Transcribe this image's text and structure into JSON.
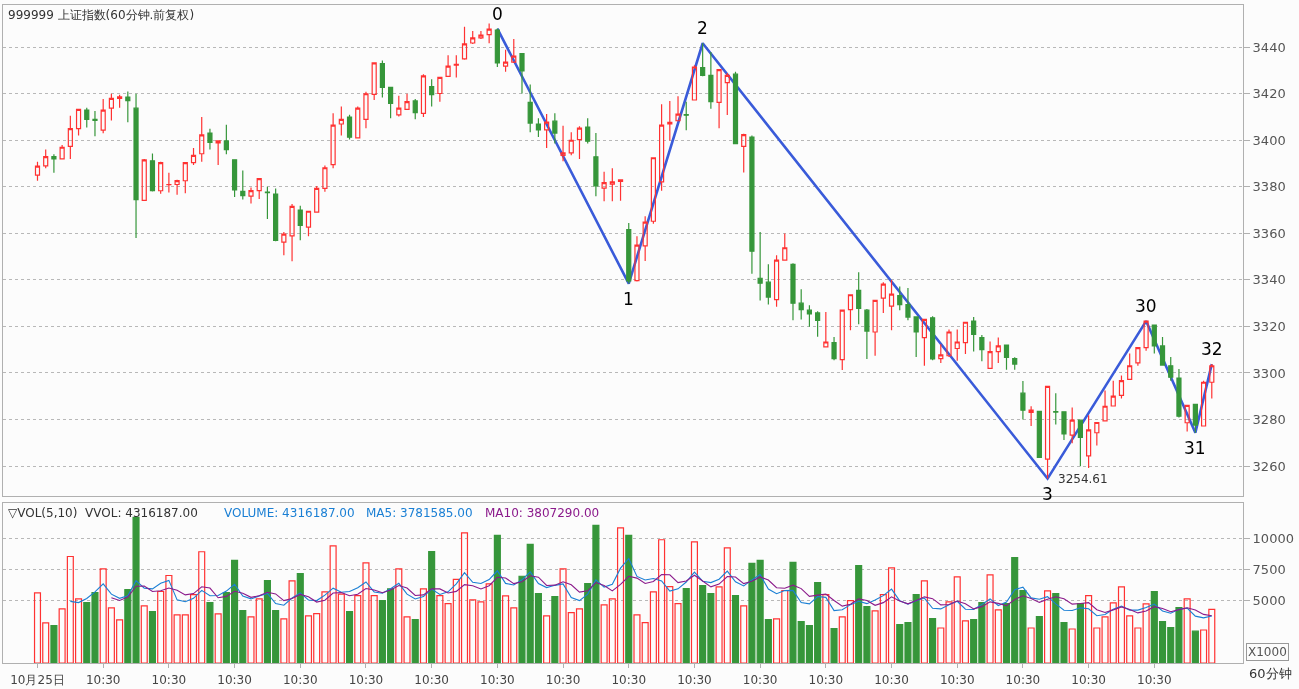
{
  "chart_data": [
    {
      "type": "candlestick",
      "title": "999999 上证指数(60分钟.前复权)",
      "ohlc": [
        [
          3385,
          3390.8,
          3382.6,
          3388.9
        ],
        [
          3389,
          3396,
          3388,
          3393
        ],
        [
          3393,
          3394,
          3386,
          3392
        ],
        [
          3392,
          3398,
          3392,
          3397
        ],
        [
          3397.4,
          3410.5,
          3392,
          3405
        ],
        [
          3405,
          3413.5,
          3402,
          3413.3
        ],
        [
          3413,
          3414,
          3405.5,
          3409
        ],
        [
          3409,
          3412.6,
          3401.7,
          3408.5
        ],
        [
          3404.4,
          3417.7,
          3403,
          3413
        ],
        [
          3413.8,
          3420,
          3408.5,
          3418
        ],
        [
          3418,
          3419.6,
          3414,
          3418.7
        ],
        [
          3418.6,
          3421,
          3407.7,
          3417
        ],
        [
          3413.8,
          3420,
          3358,
          3374.5
        ],
        [
          3374.2,
          3392,
          3374,
          3391.6
        ],
        [
          3391.2,
          3394.3,
          3378,
          3378.3
        ],
        [
          3378.3,
          3390.8,
          3377,
          3390.4
        ],
        [
          3380.9,
          3386,
          3377.6,
          3381
        ],
        [
          3381,
          3383,
          3376.6,
          3382.7
        ],
        [
          3382.6,
          3390.5,
          3377.2,
          3390.4
        ],
        [
          3390.4,
          3396.7,
          3389.4,
          3393.5
        ],
        [
          3394.2,
          3410,
          3390.8,
          3402.3
        ],
        [
          3403.1,
          3405,
          3396,
          3399.1
        ],
        [
          3398.9,
          3400,
          3389.4,
          3399.7
        ],
        [
          3399.7,
          3406.7,
          3394,
          3396
        ],
        [
          3391.6,
          3391.6,
          3375.6,
          3378.7
        ],
        [
          3378,
          3387,
          3374.5,
          3376.2
        ],
        [
          3376,
          3379.7,
          3372.8,
          3378.4
        ],
        [
          3378.4,
          3383.5,
          3374.8,
          3383.5
        ],
        [
          3377.7,
          3380,
          3366.2,
          3377.5
        ],
        [
          3376.9,
          3379.3,
          3356.6,
          3357
        ],
        [
          3356.2,
          3360.6,
          3350.6,
          3359.7
        ],
        [
          3358.9,
          3372.6,
          3348,
          3371.6
        ],
        [
          3370,
          3371.9,
          3357,
          3363.4
        ],
        [
          3362.7,
          3369.5,
          3358.7,
          3369.5
        ],
        [
          3369.1,
          3380.4,
          3369,
          3379.3
        ],
        [
          3379.3,
          3389.2,
          3377.9,
          3388.2
        ],
        [
          3389.5,
          3411.6,
          3388,
          3406.5
        ],
        [
          3407,
          3414.5,
          3402,
          3409
        ],
        [
          3410,
          3411,
          3400.3,
          3401.3
        ],
        [
          3401,
          3414.5,
          3401,
          3413.8
        ],
        [
          3409,
          3420.9,
          3405.2,
          3420
        ],
        [
          3419.7,
          3433.3,
          3417.3,
          3433.3
        ],
        [
          3432.9,
          3434.3,
          3418.4,
          3422.7
        ],
        [
          3422.7,
          3422.7,
          3409.5,
          3415.9
        ],
        [
          3410.9,
          3419.1,
          3410.2,
          3413.8
        ],
        [
          3413.3,
          3420,
          3413.3,
          3416.6
        ],
        [
          3416.9,
          3417.7,
          3409,
          3411.9
        ],
        [
          3411.6,
          3428.4,
          3410,
          3427.7
        ],
        [
          3423.1,
          3426.2,
          3414.5,
          3419.6
        ],
        [
          3420.1,
          3427,
          3416.6,
          3427
        ],
        [
          3427.5,
          3436.5,
          3427.5,
          3431.9
        ],
        [
          3432.3,
          3436.5,
          3427,
          3432.6
        ],
        [
          3435,
          3448.8,
          3434.6,
          3441.4
        ],
        [
          3441.8,
          3447,
          3441.4,
          3444
        ],
        [
          3444,
          3447,
          3443.5,
          3445.2
        ],
        [
          3445.4,
          3450.2,
          3441.7,
          3447.8
        ],
        [
          3447.4,
          3448,
          3431.5,
          3433.2
        ],
        [
          3431.9,
          3438.9,
          3429.4,
          3433.6
        ],
        [
          3433.6,
          3443.5,
          3433.2,
          3436.2
        ],
        [
          3437.2,
          3437.2,
          3420.1,
          3429.8
        ],
        [
          3416.3,
          3424,
          3403.4,
          3407.4
        ],
        [
          3407,
          3409.5,
          3401.4,
          3404.5
        ],
        [
          3404.5,
          3411.3,
          3396.7,
          3407.8
        ],
        [
          3408.2,
          3411.6,
          3398.6,
          3403.1
        ],
        [
          3393.5,
          3406.2,
          3391,
          3394.6
        ],
        [
          3394.6,
          3403.5,
          3393.6,
          3400
        ],
        [
          3400.3,
          3406,
          3392,
          3405.2
        ],
        [
          3405.7,
          3409.5,
          3398.6,
          3399.6
        ],
        [
          3392.9,
          3403.1,
          3375.9,
          3380.4
        ],
        [
          3379.4,
          3386.5,
          3373.8,
          3381.8
        ],
        [
          3381.1,
          3388,
          3373.8,
          3382.1
        ],
        [
          3382.3,
          3383,
          3374,
          3383
        ],
        [
          3361.6,
          3364.5,
          3338.4,
          3339.6
        ],
        [
          3339.7,
          3358.7,
          3339.3,
          3354.9
        ],
        [
          3354.6,
          3367.4,
          3348.1,
          3364.8
        ],
        [
          3365.2,
          3392.5,
          3364.1,
          3392.5
        ],
        [
          3382.1,
          3415.5,
          3378.3,
          3406.5
        ],
        [
          3407,
          3416.9,
          3399.9,
          3407.7
        ],
        [
          3408.4,
          3418.9,
          3408.4,
          3411.2
        ],
        [
          3411,
          3416.6,
          3404.3,
          3410.8
        ],
        [
          3417.3,
          3432.2,
          3417.3,
          3431.5
        ],
        [
          3431.2,
          3441.7,
          3427.5,
          3427.9
        ],
        [
          3427.9,
          3437.9,
          3413.5,
          3416.6
        ],
        [
          3416.3,
          3430.4,
          3405.2,
          3430.4
        ],
        [
          3424.8,
          3428.9,
          3410.9,
          3427.9
        ],
        [
          3428.4,
          3429.4,
          3398.6,
          3398.6
        ],
        [
          3397.4,
          3402.8,
          3386.1,
          3402.4
        ],
        [
          3401.4,
          3402,
          3342.6,
          3352.3
        ],
        [
          3340.7,
          3360.6,
          3331.1,
          3338.6
        ],
        [
          3339,
          3346.7,
          3329.4,
          3332.6
        ],
        [
          3331.5,
          3350.6,
          3328.4,
          3348.5
        ],
        [
          3348.5,
          3359.9,
          3348.5,
          3353.8
        ],
        [
          3346.7,
          3347.1,
          3322.6,
          3330
        ],
        [
          3330,
          3336,
          3323,
          3327.2
        ],
        [
          3327,
          3329.1,
          3319.9,
          3325.4
        ],
        [
          3325.8,
          3326.5,
          3315.6,
          3322.6
        ],
        [
          3311.2,
          3326.2,
          3311.2,
          3313.3
        ],
        [
          3313,
          3315.5,
          3305.5,
          3306.2
        ],
        [
          3305.7,
          3327.2,
          3301.3,
          3327
        ],
        [
          3327.2,
          3333.6,
          3318.3,
          3333.6
        ],
        [
          3335.5,
          3343.3,
          3320.9,
          3327.7
        ],
        [
          3327,
          3327.5,
          3306,
          3318
        ],
        [
          3317.6,
          3331.2,
          3307.4,
          3331.2
        ],
        [
          3332.2,
          3339,
          3325.8,
          3338.2
        ],
        [
          3328.7,
          3340,
          3318.4,
          3333.9
        ],
        [
          3333.2,
          3337.2,
          3327,
          3329.4
        ],
        [
          3329.4,
          3336.5,
          3322.6,
          3324
        ],
        [
          3324.1,
          3324.4,
          3306.9,
          3317.6
        ],
        [
          3315.2,
          3323,
          3303.1,
          3323
        ],
        [
          3323.7,
          3324.4,
          3305.5,
          3306
        ],
        [
          3306.2,
          3312.3,
          3304.3,
          3307.8
        ],
        [
          3307.4,
          3318.7,
          3306.9,
          3317.6
        ],
        [
          3310.5,
          3318.7,
          3305.2,
          3313.3
        ],
        [
          3313,
          3321.8,
          3308.1,
          3321.8
        ],
        [
          3322.3,
          3324.1,
          3309.2,
          3316.6
        ],
        [
          3315.2,
          3316.3,
          3305,
          3310
        ],
        [
          3302,
          3313.5,
          3302,
          3309.2
        ],
        [
          3309.2,
          3315.2,
          3304.3,
          3311.6
        ],
        [
          3312,
          3312,
          3301.4,
          3306.7
        ],
        [
          3306.2,
          3306.7,
          3301.4,
          3303.8
        ],
        [
          3291.3,
          3296.5,
          3280,
          3284
        ],
        [
          3283.1,
          3285.7,
          3277.2,
          3284
        ],
        [
          3283.5,
          3283.5,
          3263.4,
          3263.7
        ],
        [
          3263,
          3294.2,
          3254.61,
          3294.2
        ],
        [
          3283.4,
          3291.3,
          3277.9,
          3283.2
        ],
        [
          3283.3,
          3283.3,
          3271.2,
          3273.8
        ],
        [
          3273.3,
          3285.1,
          3269.8,
          3279.7
        ],
        [
          3279.7,
          3280,
          3259.9,
          3272.3
        ],
        [
          3264.4,
          3281.8,
          3259.1,
          3275.5
        ],
        [
          3274.3,
          3278.7,
          3268.8,
          3278.7
        ],
        [
          3279.4,
          3292.5,
          3279.4,
          3285.7
        ],
        [
          3285.8,
          3296.7,
          3285.8,
          3290
        ],
        [
          3290.4,
          3298.9,
          3289,
          3296.7
        ],
        [
          3297.2,
          3308.4,
          3297.2,
          3303.1
        ],
        [
          3304.3,
          3311.2,
          3303.1,
          3310.9
        ],
        [
          3310.9,
          3322.3,
          3309.5,
          3322.3
        ],
        [
          3320.6,
          3320.6,
          3308.4,
          3311.6
        ],
        [
          3311.6,
          3315.5,
          3303.1,
          3303.4
        ],
        [
          3303.1,
          3306.9,
          3296.7,
          3298.2
        ],
        [
          3297.8,
          3301.7,
          3280.9,
          3281.4
        ],
        [
          3278.6,
          3286.1,
          3274.8,
          3286.1
        ],
        [
          3286.5,
          3286.5,
          3274.3,
          3277.6
        ],
        [
          3277.2,
          3296.7,
          3277.2,
          3296
        ],
        [
          3296,
          3303.8,
          3289,
          3303.1
        ]
      ],
      "colors": [
        "#ff3232",
        "#ff3232",
        "#36963a",
        "#ff3232",
        "#ff3232",
        "#ff3232",
        "#36963a",
        "#36963a",
        "#ff3232",
        "#ff3232",
        "#ff3232",
        "#36963a",
        "#36963a",
        "#ff3232",
        "#36963a",
        "#ff3232",
        "#ff3232",
        "#ff3232",
        "#ff3232",
        "#ff3232",
        "#ff3232",
        "#36963a",
        "#ff3232",
        "#36963a",
        "#36963a",
        "#36963a",
        "#ff3232",
        "#ff3232",
        "#36963a",
        "#36963a",
        "#ff3232",
        "#ff3232",
        "#36963a",
        "#ff3232",
        "#ff3232",
        "#ff3232",
        "#ff3232",
        "#ff3232",
        "#36963a",
        "#ff3232",
        "#ff3232",
        "#ff3232",
        "#36963a",
        "#36963a",
        "#ff3232",
        "#ff3232",
        "#36963a",
        "#ff3232",
        "#36963a",
        "#ff3232",
        "#ff3232",
        "#ff3232",
        "#ff3232",
        "#ff3232",
        "#ff3232",
        "#ff3232",
        "#36963a",
        "#ff3232",
        "#ff3232",
        "#36963a",
        "#36963a",
        "#36963a",
        "#ff3232",
        "#36963a",
        "#ff3232",
        "#ff3232",
        "#ff3232",
        "#36963a",
        "#36963a",
        "#ff3232",
        "#ff3232",
        "#ff3232",
        "#36963a",
        "#ff3232",
        "#ff3232",
        "#ff3232",
        "#ff3232",
        "#ff3232",
        "#ff3232",
        "#36963a",
        "#ff3232",
        "#36963a",
        "#36963a",
        "#ff3232",
        "#ff3232",
        "#36963a",
        "#ff3232",
        "#36963a",
        "#36963a",
        "#36963a",
        "#ff3232",
        "#ff3232",
        "#36963a",
        "#36963a",
        "#36963a",
        "#36963a",
        "#ff3232",
        "#36963a",
        "#ff3232",
        "#ff3232",
        "#36963a",
        "#36963a",
        "#ff3232",
        "#ff3232",
        "#ff3232",
        "#36963a",
        "#36963a",
        "#36963a",
        "#ff3232",
        "#36963a",
        "#ff3232",
        "#ff3232",
        "#ff3232",
        "#ff3232",
        "#36963a",
        "#36963a",
        "#ff3232",
        "#ff3232",
        "#36963a",
        "#36963a",
        "#36963a",
        "#ff3232",
        "#36963a",
        "#ff3232",
        "#36963a",
        "#36963a",
        "#ff3232",
        "#36963a",
        "#ff3232",
        "#ff3232",
        "#ff3232",
        "#ff3232",
        "#ff3232",
        "#ff3232",
        "#ff3232",
        "#ff3232",
        "#36963a",
        "#36963a",
        "#36963a",
        "#36963a",
        "#ff3232",
        "#36963a",
        "#ff3232",
        "#ff3232"
      ],
      "series": [
        {
          "type": "line",
          "color": "#3a5bd9",
          "values": [
            null,
            null,
            null,
            null,
            null,
            null,
            null,
            null,
            null,
            null,
            null,
            null,
            null,
            null,
            null,
            null,
            null,
            null,
            null,
            null,
            null,
            null,
            null,
            null,
            null,
            null,
            null,
            null,
            null,
            null,
            null,
            null,
            null,
            null,
            null,
            null,
            null,
            null,
            null,
            null,
            null,
            null,
            null,
            null,
            null,
            null,
            null,
            null,
            null,
            null,
            null,
            null,
            null,
            null,
            null,
            null,
            3448,
            null,
            null,
            null,
            null,
            null,
            null,
            null,
            null,
            null,
            null,
            null,
            null,
            null,
            null,
            null,
            3338.4,
            null,
            null,
            null,
            null,
            null,
            null,
            null,
            null,
            3441.7,
            null,
            null,
            null,
            null,
            null,
            null,
            null,
            null,
            null,
            null,
            null,
            null,
            null,
            null,
            null,
            null,
            null,
            null,
            null,
            null,
            null,
            null,
            null,
            null,
            null,
            null,
            null,
            null,
            null,
            null,
            null,
            null,
            null,
            null,
            null,
            null,
            null,
            null,
            null,
            null,
            null,
            3254.61,
            null,
            null,
            null,
            null,
            null,
            null,
            null,
            null,
            null,
            null,
            null,
            3322.3,
            null,
            null,
            null,
            null,
            null,
            3274.3,
            null,
            3303.8
          ]
        }
      ],
      "annotations": [
        "3254.61",
        {
          "text": "0",
          "y": 3448
        },
        {
          "text": "1",
          "y": 3338.4
        },
        {
          "text": "2",
          "y": 3441.7
        },
        {
          "text": "3",
          "y": 3254.61
        },
        {
          "text": "30",
          "y": 3322.3
        },
        {
          "text": "31",
          "y": 3274.3
        },
        {
          "text": "32",
          "y": 3303.8
        }
      ],
      "ylim": [
        3247,
        3458
      ],
      "yticks": [
        3260,
        3280,
        3300,
        3320,
        3340,
        3360,
        3380,
        3400,
        3420,
        3440
      ],
      "grid": "y",
      "tick_labels": "y"
    },
    {
      "type": "bar",
      "title": "▽VOL(5,10)  VVOL: 4316187.00",
      "categories": [
        "10月25日",
        null,
        null,
        null,
        null,
        null,
        null,
        null,
        "10:30",
        null,
        null,
        null,
        null,
        null,
        null,
        null,
        "10:30",
        null,
        null,
        null,
        null,
        null,
        null,
        null,
        "10:30",
        null,
        null,
        null,
        null,
        null,
        null,
        null,
        "10:30",
        null,
        null,
        null,
        null,
        null,
        null,
        null,
        "10:30",
        null,
        null,
        null,
        null,
        null,
        null,
        null,
        "10:30",
        null,
        null,
        null,
        null,
        null,
        null,
        null,
        "10:30",
        null,
        null,
        null,
        null,
        null,
        null,
        null,
        "10:30",
        null,
        null,
        null,
        null,
        null,
        null,
        null,
        "10:30",
        null,
        null,
        null,
        null,
        null,
        null,
        null,
        "10:30",
        null,
        null,
        null,
        null,
        null,
        null,
        null,
        "10:30",
        null,
        null,
        null,
        null,
        null,
        null,
        null,
        "10:30",
        null,
        null,
        null,
        null,
        null,
        null,
        null,
        "10:30",
        null,
        null,
        null,
        null,
        null,
        null,
        null,
        "10:30",
        null,
        null,
        null,
        null,
        null,
        null,
        null,
        "10:30",
        null,
        null,
        null,
        null,
        null,
        null,
        null,
        "10:30",
        null,
        null,
        null,
        null,
        null,
        null,
        null,
        "10:30",
        null,
        null,
        null,
        null,
        null,
        null,
        null
      ],
      "series": [
        {
          "type": "bar",
          "colors": [
            "#ff3232",
            "#ff3232",
            "#36963a",
            "#ff3232",
            "#ff3232",
            "#ff3232",
            "#36963a",
            "#36963a",
            "#ff3232",
            "#ff3232",
            "#ff3232",
            "#36963a",
            "#36963a",
            "#ff3232",
            "#36963a",
            "#ff3232",
            "#ff3232",
            "#ff3232",
            "#ff3232",
            "#ff3232",
            "#ff3232",
            "#36963a",
            "#ff3232",
            "#36963a",
            "#36963a",
            "#36963a",
            "#ff3232",
            "#ff3232",
            "#36963a",
            "#36963a",
            "#ff3232",
            "#ff3232",
            "#36963a",
            "#ff3232",
            "#ff3232",
            "#ff3232",
            "#ff3232",
            "#ff3232",
            "#36963a",
            "#ff3232",
            "#ff3232",
            "#ff3232",
            "#36963a",
            "#36963a",
            "#ff3232",
            "#ff3232",
            "#36963a",
            "#ff3232",
            "#36963a",
            "#ff3232",
            "#ff3232",
            "#ff3232",
            "#ff3232",
            "#ff3232",
            "#ff3232",
            "#ff3232",
            "#36963a",
            "#ff3232",
            "#ff3232",
            "#36963a",
            "#36963a",
            "#36963a",
            "#ff3232",
            "#36963a",
            "#ff3232",
            "#ff3232",
            "#ff3232",
            "#36963a",
            "#36963a",
            "#ff3232",
            "#ff3232",
            "#ff3232",
            "#36963a",
            "#ff3232",
            "#ff3232",
            "#ff3232",
            "#ff3232",
            "#ff3232",
            "#ff3232",
            "#36963a",
            "#ff3232",
            "#36963a",
            "#36963a",
            "#ff3232",
            "#ff3232",
            "#36963a",
            "#ff3232",
            "#36963a",
            "#36963a",
            "#36963a",
            "#ff3232",
            "#ff3232",
            "#36963a",
            "#36963a",
            "#36963a",
            "#36963a",
            "#ff3232",
            "#36963a",
            "#ff3232",
            "#ff3232",
            "#36963a",
            "#36963a",
            "#ff3232",
            "#ff3232",
            "#ff3232",
            "#36963a",
            "#36963a",
            "#36963a",
            "#ff3232",
            "#36963a",
            "#ff3232",
            "#ff3232",
            "#ff3232",
            "#ff3232",
            "#36963a",
            "#36963a",
            "#ff3232",
            "#ff3232",
            "#36963a",
            "#36963a",
            "#36963a",
            "#ff3232",
            "#36963a",
            "#ff3232",
            "#36963a",
            "#36963a",
            "#ff3232",
            "#36963a",
            "#ff3232",
            "#ff3232",
            "#ff3232",
            "#ff3232",
            "#ff3232",
            "#ff3232",
            "#ff3232",
            "#ff3232",
            "#36963a",
            "#36963a",
            "#36963a",
            "#36963a",
            "#ff3232",
            "#36963a",
            "#ff3232",
            "#ff3232"
          ],
          "values": [
            5650,
            3230,
            3010,
            4360,
            8580,
            5160,
            4870,
            5680,
            7590,
            4440,
            3470,
            5920,
            11730,
            4600,
            4140,
            5760,
            7050,
            3870,
            3870,
            5510,
            8960,
            4870,
            3950,
            5680,
            8260,
            4220,
            3710,
            5160,
            6640,
            4220,
            3550,
            6620,
            7210,
            3790,
            3980,
            5730,
            9440,
            5540,
            4140,
            5430,
            8070,
            5430,
            5030,
            5970,
            7590,
            3710,
            3500,
            5970,
            8980,
            5430,
            4790,
            6730,
            10490,
            5080,
            4920,
            6380,
            10280,
            5410,
            4440,
            6990,
            9550,
            5600,
            3790,
            5350,
            7590,
            4060,
            4360,
            6400,
            11080,
            4680,
            5160,
            10890,
            10280,
            3870,
            3250,
            5730,
            9930,
            6160,
            4790,
            6000,
            9760,
            6240,
            5600,
            6130,
            9280,
            5430,
            4600,
            8020,
            8260,
            3500,
            3550,
            5840,
            8100,
            3340,
            3010,
            6480,
            5510,
            2770,
            3710,
            5030,
            7850,
            4550,
            4200,
            5510,
            7670,
            3090,
            3250,
            5510,
            6620,
            3580,
            2820,
            4920,
            6940,
            3390,
            3500,
            4870,
            7100,
            4280,
            4790,
            8500,
            5840,
            2820,
            3740,
            5810,
            5600,
            3250,
            2740,
            4790,
            5430,
            2820,
            3710,
            4840,
            6130,
            3790,
            2820,
            4760,
            5760,
            3340,
            2850,
            4470,
            5160,
            2560,
            2660,
            4316
          ]
        },
        {
          "name": "MA5: 3781585.00",
          "type": "line",
          "color": "#1a7fd4",
          "values": [
            null,
            null,
            null,
            null,
            4966,
            4868,
            5196,
            5730,
            6376,
            5548,
            5210,
            5420,
            6630,
            6032,
            5972,
            6430,
            6656,
            5084,
            4938,
            5212,
            5852,
            5416,
            5432,
            5794,
            6344,
            5396,
            5164,
            5406,
            5598,
            4790,
            4656,
            5238,
            5648,
            5078,
            5030,
            5466,
            6030,
            5696,
            5766,
            6056,
            6524,
            5722,
            5620,
            5986,
            6418,
            5546,
            5160,
            5348,
            5950,
            5518,
            5734,
            6380,
            7284,
            6504,
            6402,
            6720,
            7430,
            6414,
            6286,
            6700,
            7334,
            6398,
            6074,
            6256,
            6376,
            5278,
            5030,
            5552,
            6698,
            6116,
            6336,
            7642,
            8418,
            6976,
            6690,
            6804,
            6612,
            5788,
            5972,
            6522,
            7328,
            6590,
            6478,
            6746,
            7402,
            6536,
            6208,
            6692,
            7118,
            5962,
            5586,
            5834,
            5850,
            4866,
            4768,
            5354,
            5288,
            4222,
            4296,
            4700,
            4974,
            4782,
            5068,
            5428,
            5956,
            5004,
            4744,
            5006,
            5228,
            4410,
            4356,
            4690,
            4976,
            4330,
            4314,
            4724,
            5160,
            4628,
            4908,
            5908,
            6102,
            5246,
            5138,
            5348,
            4768,
            4250,
            4234,
            4444,
            4368,
            3812,
            3902,
            4322,
            4590,
            4262,
            4262,
            4472,
            4752,
            4194,
            4006,
            4336,
            4416,
            3776,
            3636,
            3782
          ]
        },
        {
          "name": "MA10: 3807290.00",
          "type": "line",
          "color": "#8b1a8b",
          "values": [
            null,
            null,
            null,
            null,
            null,
            null,
            null,
            null,
            null,
            5257,
            5039,
            5308,
            6180,
            6204,
            5760,
            5820,
            6038,
            5857,
            5485,
            5592,
            6141,
            6036,
            5258,
            5366,
            5778,
            5624,
            5290,
            5419,
            5696,
            5567,
            5026,
            5201,
            5527,
            5338,
            4910,
            5061,
            5634,
            5672,
            5422,
            5543,
            5995,
            5876,
            5658,
            5876,
            6237,
            6035,
            5441,
            5484,
            5968,
            5968,
            5640,
            5770,
            6316,
            6227,
            5960,
            6227,
            6905,
            6849,
            6395,
            6551,
            7027,
            6914,
            6244,
            6271,
            6538,
            6306,
            5714,
            5813,
            6477,
            6246,
            5807,
            6336,
            6985,
            6837,
            6403,
            6570,
            7127,
            7103,
            6474,
            6606,
            7066,
            6601,
            6133,
            6359,
            6962,
            6932,
            6399,
            6585,
            6932,
            6682,
            6061,
            6021,
            6271,
            5992,
            5365,
            5470,
            5561,
            5036,
            4581,
            4734,
            5164,
            5035,
            4645,
            4862,
            5328,
            4989,
            4763,
            5037,
            5328,
            5183,
            4680,
            4717,
            4991,
            4779,
            4362,
            4540,
            4925,
            4802,
            4619,
            5111,
            5413,
            5203,
            4883,
            5128,
            5338,
            5176,
            4740,
            4791,
            4858,
            4290,
            4076,
            4278,
            4517,
            4315,
            4037,
            4187,
            4537,
            4392,
            4134,
            4299,
            4444,
            4264,
            3915,
            3807
          ]
        }
      ],
      "annotations": [
        "VOLUME: 4316187.00",
        "X1000",
        "60分钟"
      ],
      "ylim": [
        0,
        12900
      ],
      "yticks": [
        5000,
        7500,
        10000
      ],
      "grid": "y",
      "legend": "top left"
    }
  ]
}
